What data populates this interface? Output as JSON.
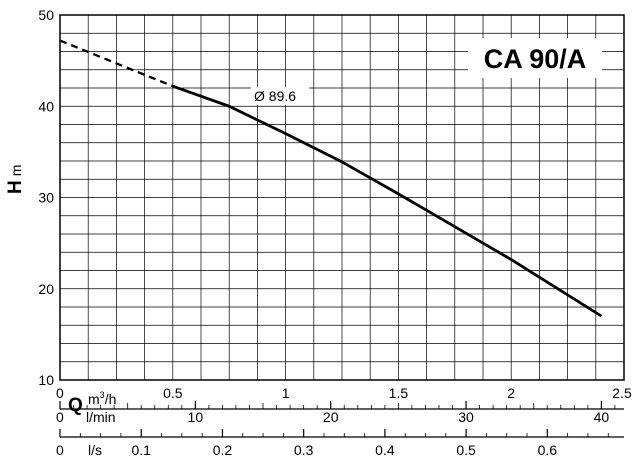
{
  "chart_data": {
    "type": "line",
    "title": "CA 90/A",
    "ylabel": {
      "main": "H",
      "unit": "m"
    },
    "xlabel": {
      "main": "Q",
      "unit": "m³/h"
    },
    "x_unit_text": "m",
    "x_unit_sup": "3",
    "x_unit_rest": "/h",
    "xlim": [
      0,
      2.5
    ],
    "ylim": [
      10,
      50
    ],
    "y_ticks": [
      10,
      20,
      30,
      40,
      50
    ],
    "x_ticks": [
      0,
      0.5,
      1,
      1.5,
      2,
      2.5
    ],
    "grid": true,
    "series": [
      {
        "name": "Ø 89.6",
        "points": [
          [
            0.5,
            42.2
          ],
          [
            0.75,
            40.0
          ],
          [
            1.0,
            37.0
          ],
          [
            1.25,
            33.9
          ],
          [
            1.5,
            30.4
          ],
          [
            1.75,
            26.8
          ],
          [
            2.0,
            23.2
          ],
          [
            2.2,
            20.1
          ],
          [
            2.4,
            17.0
          ]
        ],
        "extrapolated": [
          [
            0,
            47.2
          ],
          [
            0.5,
            42.2
          ]
        ]
      }
    ],
    "secondary_axes": [
      {
        "unit": "l/min",
        "max": 41.67,
        "ticks": [
          10,
          20,
          30,
          40
        ],
        "zero_label": "0"
      },
      {
        "unit": "l/s",
        "max": 0.6944,
        "ticks": [
          "0.1",
          "0.2",
          "0.3",
          "0.4",
          "0.5",
          "0.6"
        ],
        "zero_label": "0"
      }
    ]
  }
}
